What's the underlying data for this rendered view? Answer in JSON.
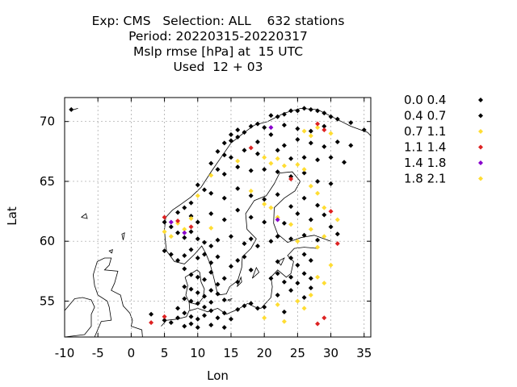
{
  "title_lines": [
    "Exp: CMS   Selection: ALL    632 stations",
    "Period: 20220315-20220317",
    "Mslp rmse [hPa] at  15 UTC",
    "Used  12 + 03"
  ],
  "chart_data": {
    "type": "scatter",
    "xlabel": "Lon",
    "ylabel": "Lat",
    "xlim": [
      -10,
      36
    ],
    "ylim": [
      52,
      72
    ],
    "xticks": [
      -10,
      -5,
      0,
      5,
      10,
      15,
      20,
      25,
      30,
      35
    ],
    "yticks": [
      55,
      60,
      65,
      70
    ],
    "grid": true,
    "legend_position": "right",
    "series": [
      {
        "name": "0.0 0.4",
        "color": "#000000",
        "points": []
      },
      {
        "name": "0.4 0.7",
        "color": "#000000",
        "points": [
          [
            -9,
            71
          ],
          [
            21,
            70.5
          ],
          [
            22,
            70.4
          ],
          [
            23,
            70.6
          ],
          [
            24,
            70.9
          ],
          [
            25,
            70.9
          ],
          [
            26,
            71.1
          ],
          [
            27,
            71.0
          ],
          [
            28,
            70.9
          ],
          [
            29,
            70.7
          ],
          [
            30,
            70.4
          ],
          [
            31,
            70.2
          ],
          [
            33,
            69.9
          ],
          [
            35,
            69.3
          ],
          [
            15,
            68.9
          ],
          [
            16,
            69.3
          ],
          [
            17,
            69.1
          ],
          [
            18,
            69.6
          ],
          [
            19,
            69.8
          ],
          [
            20,
            69.5
          ],
          [
            23,
            69.7
          ],
          [
            25,
            69.4
          ],
          [
            27,
            69.2
          ],
          [
            29,
            69.6
          ],
          [
            14,
            68.2
          ],
          [
            15,
            68.4
          ],
          [
            16,
            68.7
          ],
          [
            19,
            68.3
          ],
          [
            21,
            68.9
          ],
          [
            23,
            68.0
          ],
          [
            25,
            68.5
          ],
          [
            27,
            68.2
          ],
          [
            29,
            67.9
          ],
          [
            31,
            68.3
          ],
          [
            33,
            68.0
          ],
          [
            13,
            67.5
          ],
          [
            14,
            67.2
          ],
          [
            15,
            67.0
          ],
          [
            17,
            67.6
          ],
          [
            19,
            67.3
          ],
          [
            22,
            67.6
          ],
          [
            24,
            66.9
          ],
          [
            26,
            67.0
          ],
          [
            28,
            66.8
          ],
          [
            30,
            67.0
          ],
          [
            32,
            66.6
          ],
          [
            12,
            66.5
          ],
          [
            13,
            66.0
          ],
          [
            14,
            65.6
          ],
          [
            16,
            66.2
          ],
          [
            18,
            65.9
          ],
          [
            20,
            66.0
          ],
          [
            22,
            65.8
          ],
          [
            24,
            65.4
          ],
          [
            26,
            65.7
          ],
          [
            28,
            65.0
          ],
          [
            30,
            64.8
          ],
          [
            10,
            64.7
          ],
          [
            11,
            64.3
          ],
          [
            12,
            64.0
          ],
          [
            14,
            63.6
          ],
          [
            16,
            64.4
          ],
          [
            18,
            63.8
          ],
          [
            20,
            63.5
          ],
          [
            22,
            63.9
          ],
          [
            24,
            62.9
          ],
          [
            26,
            63.6
          ],
          [
            28,
            63.0
          ],
          [
            9,
            63.2
          ],
          [
            8,
            62.8
          ],
          [
            7,
            62.4
          ],
          [
            9,
            62.1
          ],
          [
            10,
            61.6
          ],
          [
            12,
            62.3
          ],
          [
            14,
            61.8
          ],
          [
            16,
            62.6
          ],
          [
            18,
            62.0
          ],
          [
            20,
            61.6
          ],
          [
            23,
            61.5
          ],
          [
            25,
            62.3
          ],
          [
            27,
            61.8
          ],
          [
            29,
            62.2
          ],
          [
            30,
            61.2
          ],
          [
            31,
            60.6
          ],
          [
            5,
            61.6
          ],
          [
            6,
            61.2
          ],
          [
            7,
            60.7
          ],
          [
            8,
            60.3
          ],
          [
            9,
            60.8
          ],
          [
            10,
            60.2
          ],
          [
            11,
            59.9
          ],
          [
            12,
            59.6
          ],
          [
            13,
            60.1
          ],
          [
            15,
            60.4
          ],
          [
            17,
            59.8
          ],
          [
            18,
            60.2
          ],
          [
            19,
            59.6
          ],
          [
            21,
            60.0
          ],
          [
            22,
            60.4
          ],
          [
            24,
            60.2
          ],
          [
            26,
            60.5
          ],
          [
            28,
            60.1
          ],
          [
            5,
            59.2
          ],
          [
            6,
            58.9
          ],
          [
            7,
            58.4
          ],
          [
            8,
            58.8
          ],
          [
            9,
            59.3
          ],
          [
            10,
            58.6
          ],
          [
            11,
            58.9
          ],
          [
            12,
            58.2
          ],
          [
            13,
            58.7
          ],
          [
            15,
            57.9
          ],
          [
            16,
            58.4
          ],
          [
            17,
            58.7
          ],
          [
            18,
            57.6
          ],
          [
            22,
            58.3
          ],
          [
            24,
            58.6
          ],
          [
            25,
            58.0
          ],
          [
            26,
            58.9
          ],
          [
            27,
            58.4
          ],
          [
            8,
            57.7
          ],
          [
            9,
            57.2
          ],
          [
            10,
            57.0
          ],
          [
            11,
            56.8
          ],
          [
            12,
            57.4
          ],
          [
            13,
            56.4
          ],
          [
            14,
            56.9
          ],
          [
            16,
            56.6
          ],
          [
            21,
            56.9
          ],
          [
            22,
            57.3
          ],
          [
            23,
            56.6
          ],
          [
            24,
            57.0
          ],
          [
            25,
            56.5
          ],
          [
            26,
            57.3
          ],
          [
            27,
            56.9
          ],
          [
            8,
            56.2
          ],
          [
            9,
            56.0
          ],
          [
            10,
            55.7
          ],
          [
            11,
            55.4
          ],
          [
            12,
            55.9
          ],
          [
            13,
            55.6
          ],
          [
            8,
            55.2
          ],
          [
            9,
            55.0
          ],
          [
            10,
            54.8
          ],
          [
            11,
            54.5
          ],
          [
            12,
            54.9
          ],
          [
            14,
            55.1
          ],
          [
            22,
            55.5
          ],
          [
            24,
            55.9
          ],
          [
            26,
            55.3
          ],
          [
            27,
            56.1
          ],
          [
            7,
            54.4
          ],
          [
            8,
            54.0
          ],
          [
            9,
            53.7
          ],
          [
            10,
            53.5
          ],
          [
            11,
            53.8
          ],
          [
            12,
            54.2
          ],
          [
            13,
            53.6
          ],
          [
            14,
            54.0
          ],
          [
            15,
            53.5
          ],
          [
            16,
            54.3
          ],
          [
            17,
            54.6
          ],
          [
            18,
            54.8
          ],
          [
            19,
            54.4
          ],
          [
            20,
            54.5
          ],
          [
            23,
            54.1
          ],
          [
            5,
            53.4
          ],
          [
            6,
            53.2
          ],
          [
            7,
            53.6
          ],
          [
            8,
            52.9
          ],
          [
            9,
            53.1
          ],
          [
            10,
            52.8
          ],
          [
            12,
            53.0
          ],
          [
            14,
            52.8
          ],
          [
            3,
            53.9
          ]
        ]
      },
      {
        "name": "0.7 1.1",
        "color": "#ffdd33",
        "points": [
          [
            26,
            69.2
          ],
          [
            27,
            68.8
          ],
          [
            28,
            69.5
          ],
          [
            30,
            69.0
          ],
          [
            16,
            66.7
          ],
          [
            20,
            67.0
          ],
          [
            21,
            66.5
          ],
          [
            22,
            66.9
          ],
          [
            23,
            66.3
          ],
          [
            26,
            66.0
          ],
          [
            12,
            65.5
          ],
          [
            18,
            64.2
          ],
          [
            27,
            64.6
          ],
          [
            28,
            64.0
          ],
          [
            10,
            63.8
          ],
          [
            20,
            63.1
          ],
          [
            21,
            62.8
          ],
          [
            22,
            62.0
          ],
          [
            24,
            61.4
          ],
          [
            27,
            61.0
          ],
          [
            29,
            60.4
          ],
          [
            9,
            61.9
          ],
          [
            5,
            60.8
          ],
          [
            6,
            60.4
          ],
          [
            7,
            61.5
          ],
          [
            8,
            61.0
          ],
          [
            12,
            61.1
          ],
          [
            25,
            60.0
          ],
          [
            28,
            59.5
          ],
          [
            28,
            57.0
          ],
          [
            27,
            55.5
          ],
          [
            25,
            55.0
          ],
          [
            26,
            54.4
          ],
          [
            22,
            54.7
          ],
          [
            20,
            53.6
          ],
          [
            23,
            53.3
          ]
        ]
      },
      {
        "name": "1.1 1.4",
        "color": "#dd2222",
        "points": [
          [
            28,
            69.8
          ],
          [
            29,
            69.3
          ],
          [
            18,
            67.8
          ],
          [
            24,
            65.2
          ],
          [
            30,
            62.5
          ],
          [
            5,
            62.0
          ],
          [
            7,
            61.7
          ],
          [
            9,
            61.2
          ],
          [
            31,
            59.8
          ],
          [
            29,
            53.6
          ],
          [
            28,
            53.1
          ],
          [
            3,
            53.2
          ],
          [
            5,
            53.7
          ]
        ]
      },
      {
        "name": "1.4 1.8",
        "color": "#8800cc",
        "points": [
          [
            21,
            69.5
          ],
          [
            22,
            61.8
          ],
          [
            6,
            61.6
          ],
          [
            8,
            60.7
          ]
        ]
      },
      {
        "name": "1.8 2.1",
        "color": "#ffdd33",
        "points": [
          [
            25,
            66.4
          ],
          [
            29,
            62.8
          ],
          [
            31,
            61.8
          ],
          [
            30,
            58.0
          ],
          [
            29,
            56.5
          ]
        ]
      }
    ]
  }
}
